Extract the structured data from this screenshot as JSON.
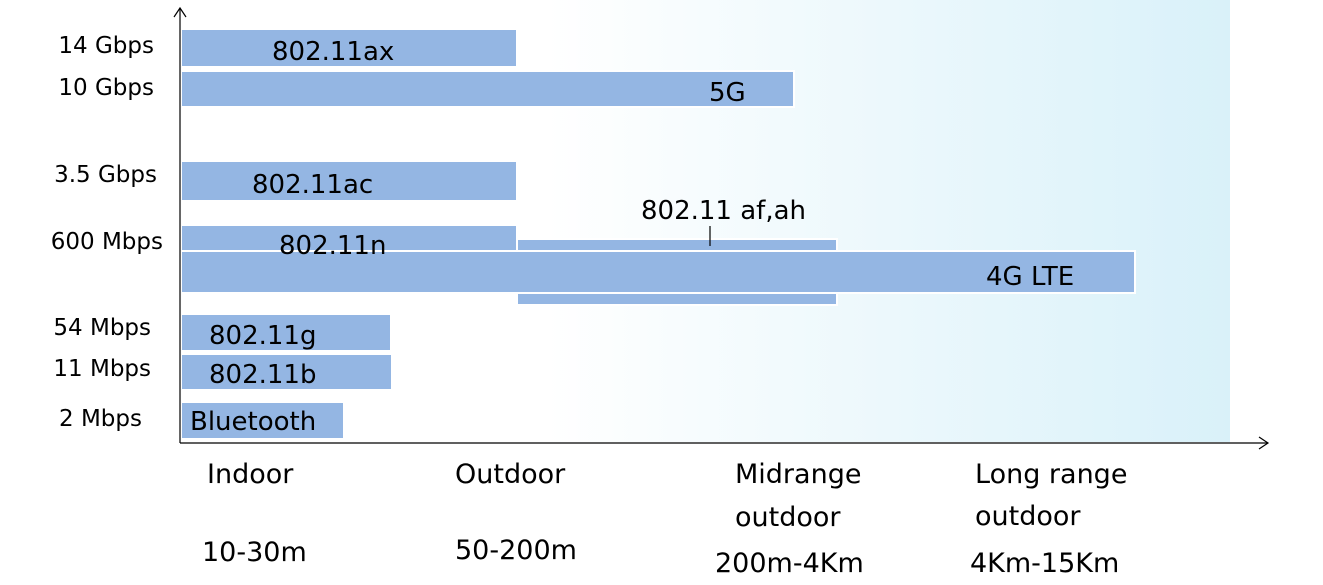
{
  "colors": {
    "bar_fill": "#94b6e3",
    "background_gradient_start": "#ffffff",
    "background_gradient_end": "#d9f1f9"
  },
  "y_axis_ticks": [
    "14 Gbps",
    "10 Gbps",
    "3.5 Gbps",
    "600 Mbps",
    "54 Mbps",
    "11 Mbps",
    "2 Mbps"
  ],
  "x_categories": [
    {
      "name_lines": [
        "Indoor"
      ],
      "range": "10-30m"
    },
    {
      "name_lines": [
        "Outdoor"
      ],
      "range": "50-200m"
    },
    {
      "name_lines": [
        "Midrange",
        "outdoor"
      ],
      "range": "200m-4Km"
    },
    {
      "name_lines": [
        "Long range",
        "outdoor"
      ],
      "range": "4Km-15Km"
    }
  ],
  "technologies": [
    {
      "label": "802.11ax"
    },
    {
      "label": "5G"
    },
    {
      "label": "802.11ac"
    },
    {
      "label": "802.11 af,ah"
    },
    {
      "label": "802.11n"
    },
    {
      "label": "4G LTE"
    },
    {
      "label": "802.11g"
    },
    {
      "label": "802.11b"
    },
    {
      "label": "Bluetooth"
    }
  ]
}
